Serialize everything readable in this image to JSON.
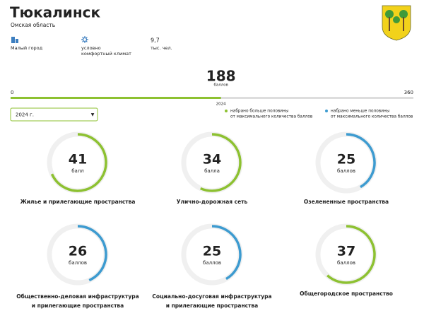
{
  "header": {
    "title": "Тюкалинск",
    "subtitle": "Омская область",
    "info": [
      {
        "text": "Малый город"
      },
      {
        "lines": [
          "условно",
          "комфортный климат"
        ]
      },
      {
        "lines": [
          "9,7",
          "тыс. чел."
        ]
      }
    ]
  },
  "score": {
    "value": 188,
    "unit": "баллов",
    "min": 0,
    "max": 360,
    "year": "2024",
    "color": "#8dc131"
  },
  "dropdown": {
    "label": "2024 г.",
    "arrow": "▼"
  },
  "legend": [
    {
      "color": "#8dc131",
      "lines": [
        "набрано больше половины",
        "от максимального количества баллов"
      ]
    },
    {
      "color": "#3d9bd0",
      "lines": [
        "набрано меньше половины",
        "от максимального количества баллов"
      ]
    }
  ],
  "cards": [
    {
      "value": 41,
      "unit": "балл",
      "lines": [
        "Жилье и прилегающие пространства"
      ]
    },
    {
      "value": 34,
      "unit": "балла",
      "lines": [
        "Улично-дорожная сеть"
      ]
    },
    {
      "value": 25,
      "unit": "баллов",
      "lines": [
        "Озелененные пространства"
      ]
    },
    {
      "value": 26,
      "unit": "баллов",
      "lines": [
        "Общественно-деловая инфраструктура",
        "и прилегающие пространства"
      ]
    },
    {
      "value": 25,
      "unit": "баллов",
      "lines": [
        "Социально-досуговая инфраструктура",
        "и прилегающие пространства"
      ]
    },
    {
      "value": 37,
      "unit": "баллов",
      "lines": [
        "Общегородское пространство"
      ]
    }
  ]
}
